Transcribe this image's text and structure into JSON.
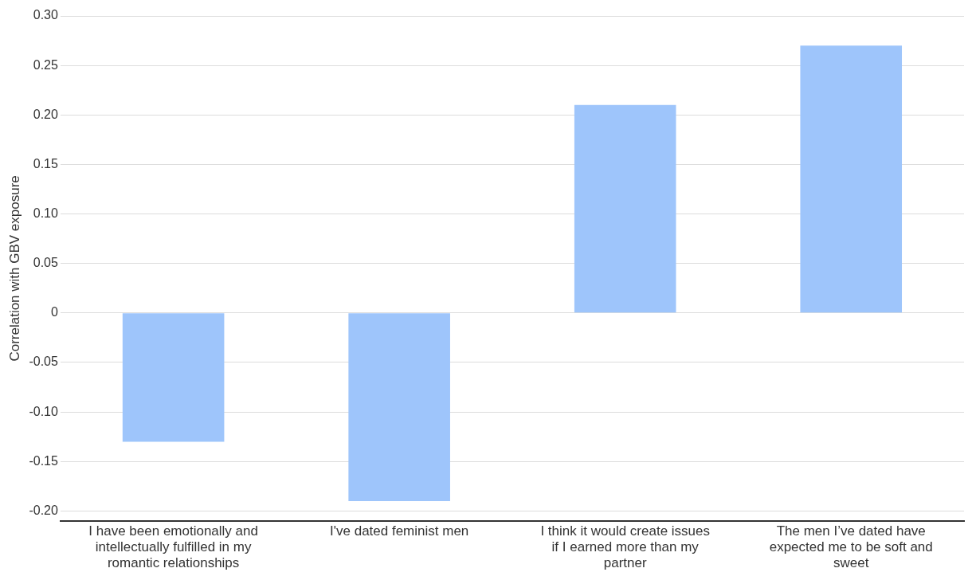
{
  "chart_data": {
    "type": "bar",
    "ylabel": "Correlation with GBV exposure",
    "categories": [
      "I have been emotionally and intellectually fulfilled in my romantic relationships",
      "I've dated feminist men",
      "I think it would create issues if I earned more than my partner",
      "The men I’ve dated have expected me to be soft and sweet"
    ],
    "values": [
      -0.13,
      -0.19,
      0.21,
      0.27
    ],
    "color": "#9ec5fb",
    "ylim": [
      -0.21,
      0.3
    ],
    "yticks": [
      {
        "value": -0.2,
        "label": "-0.20"
      },
      {
        "value": -0.15,
        "label": "-0.15"
      },
      {
        "value": -0.1,
        "label": "-0.10"
      },
      {
        "value": -0.05,
        "label": "-0.05"
      },
      0,
      {
        "value": 0.05,
        "label": "0.05"
      },
      {
        "value": 0.1,
        "label": "0.10"
      },
      {
        "value": 0.15,
        "label": "0.15"
      },
      {
        "value": 0.2,
        "label": "0.20"
      },
      {
        "value": 0.25,
        "label": "0.25"
      },
      {
        "value": 0.3,
        "label": "0.30"
      }
    ],
    "grid": "y",
    "legend": false
  }
}
